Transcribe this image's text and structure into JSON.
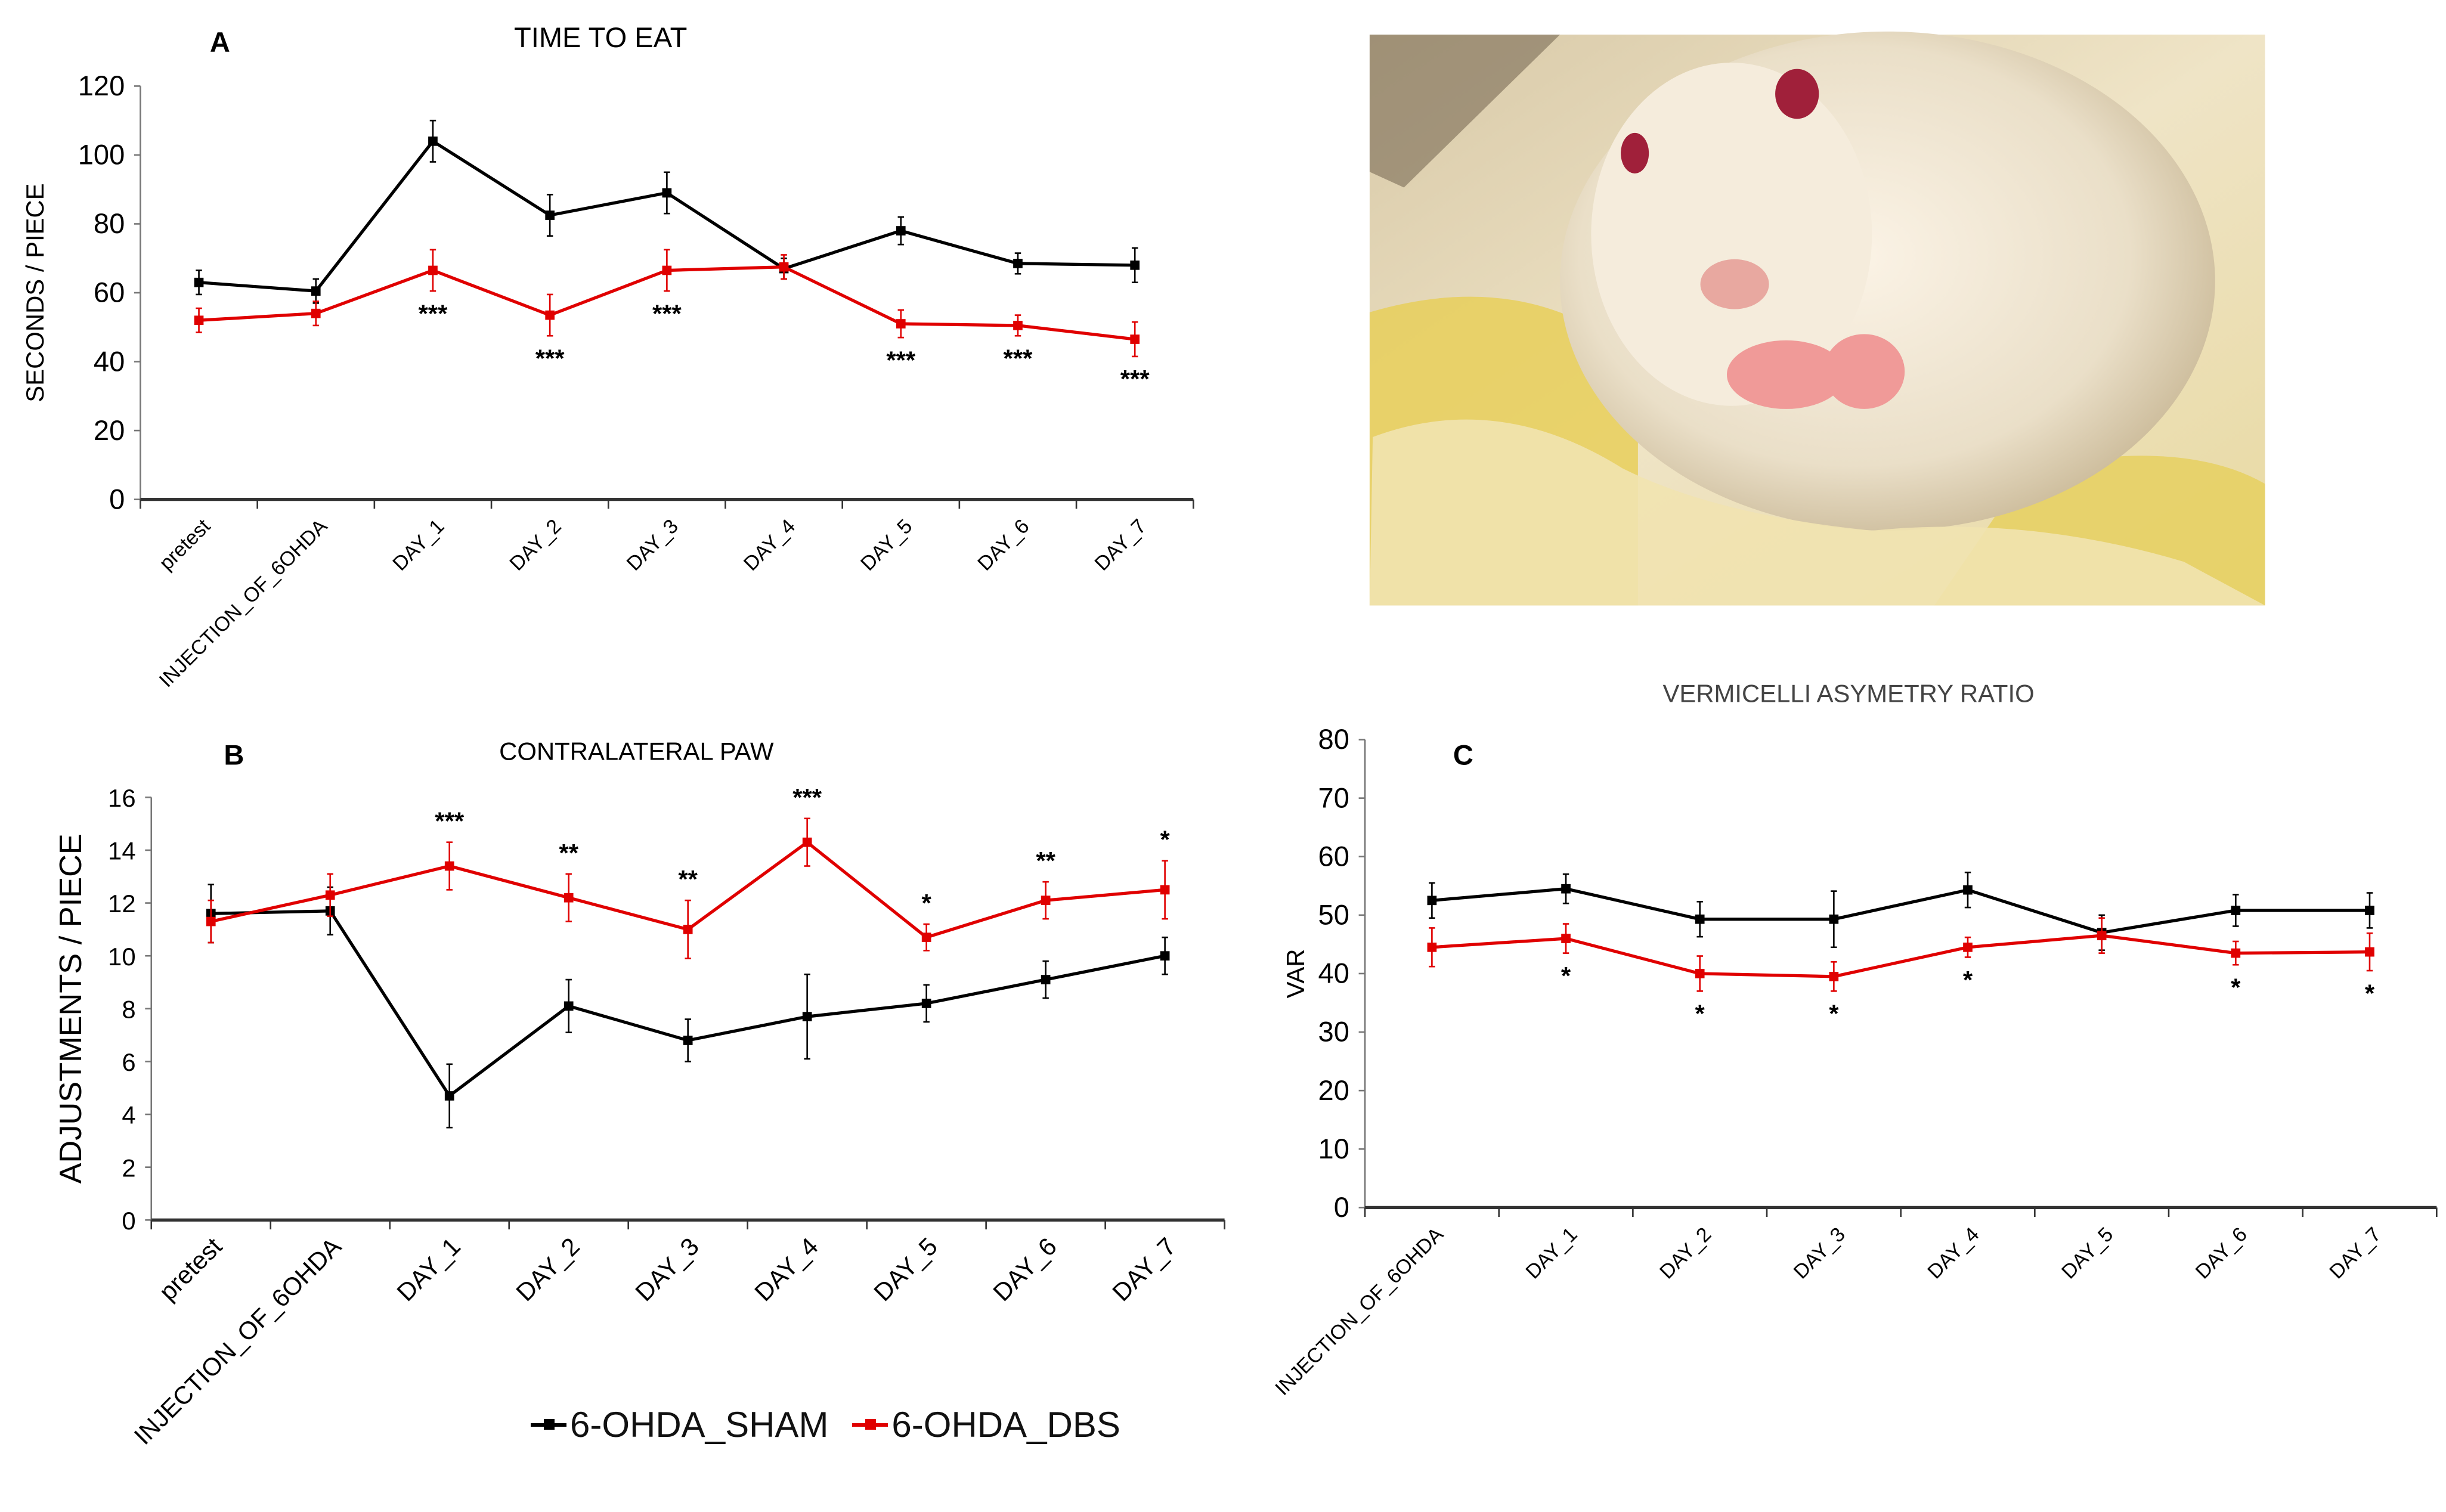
{
  "colors": {
    "sham": "#000000",
    "dbs": "#e00000"
  },
  "legend": [
    {
      "label": "6-OHDA_SHAM",
      "series": "sham"
    },
    {
      "label": "6-OHDA_DBS",
      "series": "dbs"
    }
  ],
  "photo": {
    "subject": "white rat eating vermicelli"
  },
  "chart_data": [
    {
      "id": "A",
      "panel_label": "A",
      "type": "line",
      "title": "TIME TO EAT",
      "ylabel": "SECONDS / PIECE",
      "xlabel": "",
      "ylim": [
        0,
        120
      ],
      "yticks": [
        0,
        20,
        40,
        60,
        80,
        100,
        120
      ],
      "categories": [
        "pretest",
        "INJECTION_OF_6OHDA",
        "DAY_1",
        "DAY_2",
        "DAY_3",
        "DAY_4",
        "DAY_5",
        "DAY_6",
        "DAY_7"
      ],
      "series": [
        {
          "name": "6-OHDA_SHAM",
          "key": "sham",
          "values": [
            63,
            60.5,
            104,
            82.5,
            89,
            67,
            78,
            68.5,
            68
          ],
          "errors": [
            3.5,
            3.5,
            6,
            6,
            6,
            3,
            4,
            3,
            5
          ]
        },
        {
          "name": "6-OHDA_DBS",
          "key": "dbs",
          "values": [
            52,
            54,
            66.5,
            53.5,
            66.5,
            67.5,
            51,
            50.5,
            46.5
          ],
          "errors": [
            3.5,
            3.5,
            6,
            6,
            6,
            3.5,
            4,
            3,
            5
          ]
        }
      ],
      "significance": [
        "",
        "",
        "***",
        "***",
        "***",
        "",
        "***",
        "***",
        "***"
      ],
      "sig_position": "below"
    },
    {
      "id": "B",
      "panel_label": "B",
      "type": "line",
      "title": "CONTRALATERAL  PAW",
      "ylabel": "ADJUSTMENTS / PIECE",
      "xlabel": "",
      "ylim": [
        0,
        16
      ],
      "yticks": [
        0,
        2,
        4,
        6,
        8,
        10,
        12,
        14,
        16
      ],
      "categories": [
        "pretest",
        "INJECTION_OF_6OHDA",
        "DAY_1",
        "DAY_2",
        "DAY_3",
        "DAY_4",
        "DAY_5",
        "DAY_6",
        "DAY_7"
      ],
      "series": [
        {
          "name": "6-OHDA_SHAM",
          "key": "sham",
          "values": [
            11.6,
            11.7,
            4.7,
            8.1,
            6.8,
            7.7,
            8.2,
            9.1,
            10.0
          ],
          "errors": [
            1.1,
            0.9,
            1.2,
            1.0,
            0.8,
            1.6,
            0.7,
            0.7,
            0.7
          ]
        },
        {
          "name": "6-OHDA_DBS",
          "key": "dbs",
          "values": [
            11.3,
            12.3,
            13.4,
            12.2,
            11.0,
            14.3,
            10.7,
            12.1,
            12.5
          ],
          "errors": [
            0.8,
            0.8,
            0.9,
            0.9,
            1.1,
            0.9,
            0.5,
            0.7,
            1.1
          ]
        }
      ],
      "significance": [
        "",
        "",
        "***",
        "**",
        "**",
        "***",
        "*",
        "**",
        "*"
      ],
      "sig_position": "above"
    },
    {
      "id": "C",
      "panel_label": "C",
      "type": "line",
      "title": "VERMICELLI ASYMETRY RATIO",
      "ylabel": "VAR",
      "xlabel": "",
      "ylim": [
        0,
        80
      ],
      "yticks": [
        0,
        10,
        20,
        30,
        40,
        50,
        60,
        70,
        80
      ],
      "categories": [
        "INJECTION_OF_6OHDA",
        "DAY_1",
        "DAY_2",
        "DAY_3",
        "DAY_4",
        "DAY_5",
        "DAY_6",
        "DAY_7"
      ],
      "series": [
        {
          "name": "6-OHDA_SHAM",
          "key": "sham",
          "values": [
            52.5,
            54.5,
            49.3,
            49.3,
            54.3,
            47,
            50.8,
            50.8
          ],
          "errors": [
            3,
            2.5,
            3,
            4.8,
            3,
            3,
            2.7,
            3
          ]
        },
        {
          "name": "6-OHDA_DBS",
          "key": "dbs",
          "values": [
            44.5,
            46,
            40,
            39.5,
            44.5,
            46.5,
            43.5,
            43.7
          ],
          "errors": [
            3.3,
            2.5,
            3,
            2.5,
            1.7,
            3,
            2,
            3.2
          ]
        }
      ],
      "significance": [
        "",
        "*",
        "*",
        "*",
        "*",
        "",
        "*",
        "*"
      ],
      "sig_position": "below"
    }
  ]
}
